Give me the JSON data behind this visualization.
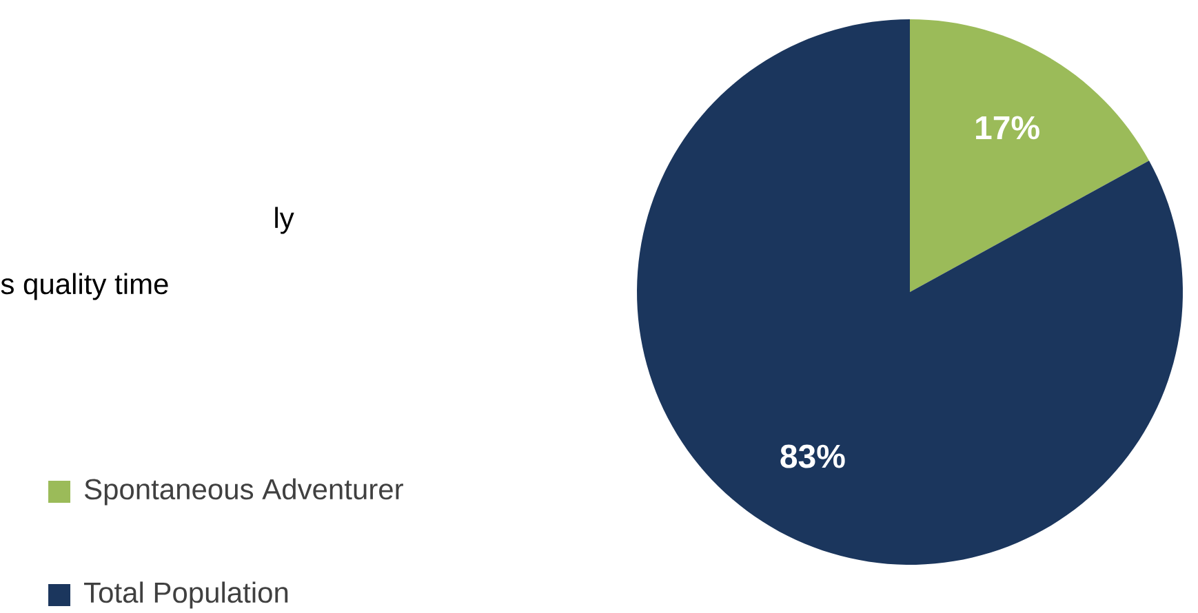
{
  "chart_data": {
    "type": "pie",
    "categories": [
      "Spontaneous Adventurer",
      "Total Population"
    ],
    "values": [
      17,
      83
    ],
    "colors": [
      "#9bbb59",
      "#1b365d"
    ],
    "value_labels": [
      "17%",
      "83%"
    ],
    "legend": "left",
    "annotations": [
      "ly",
      "s quality time"
    ]
  }
}
